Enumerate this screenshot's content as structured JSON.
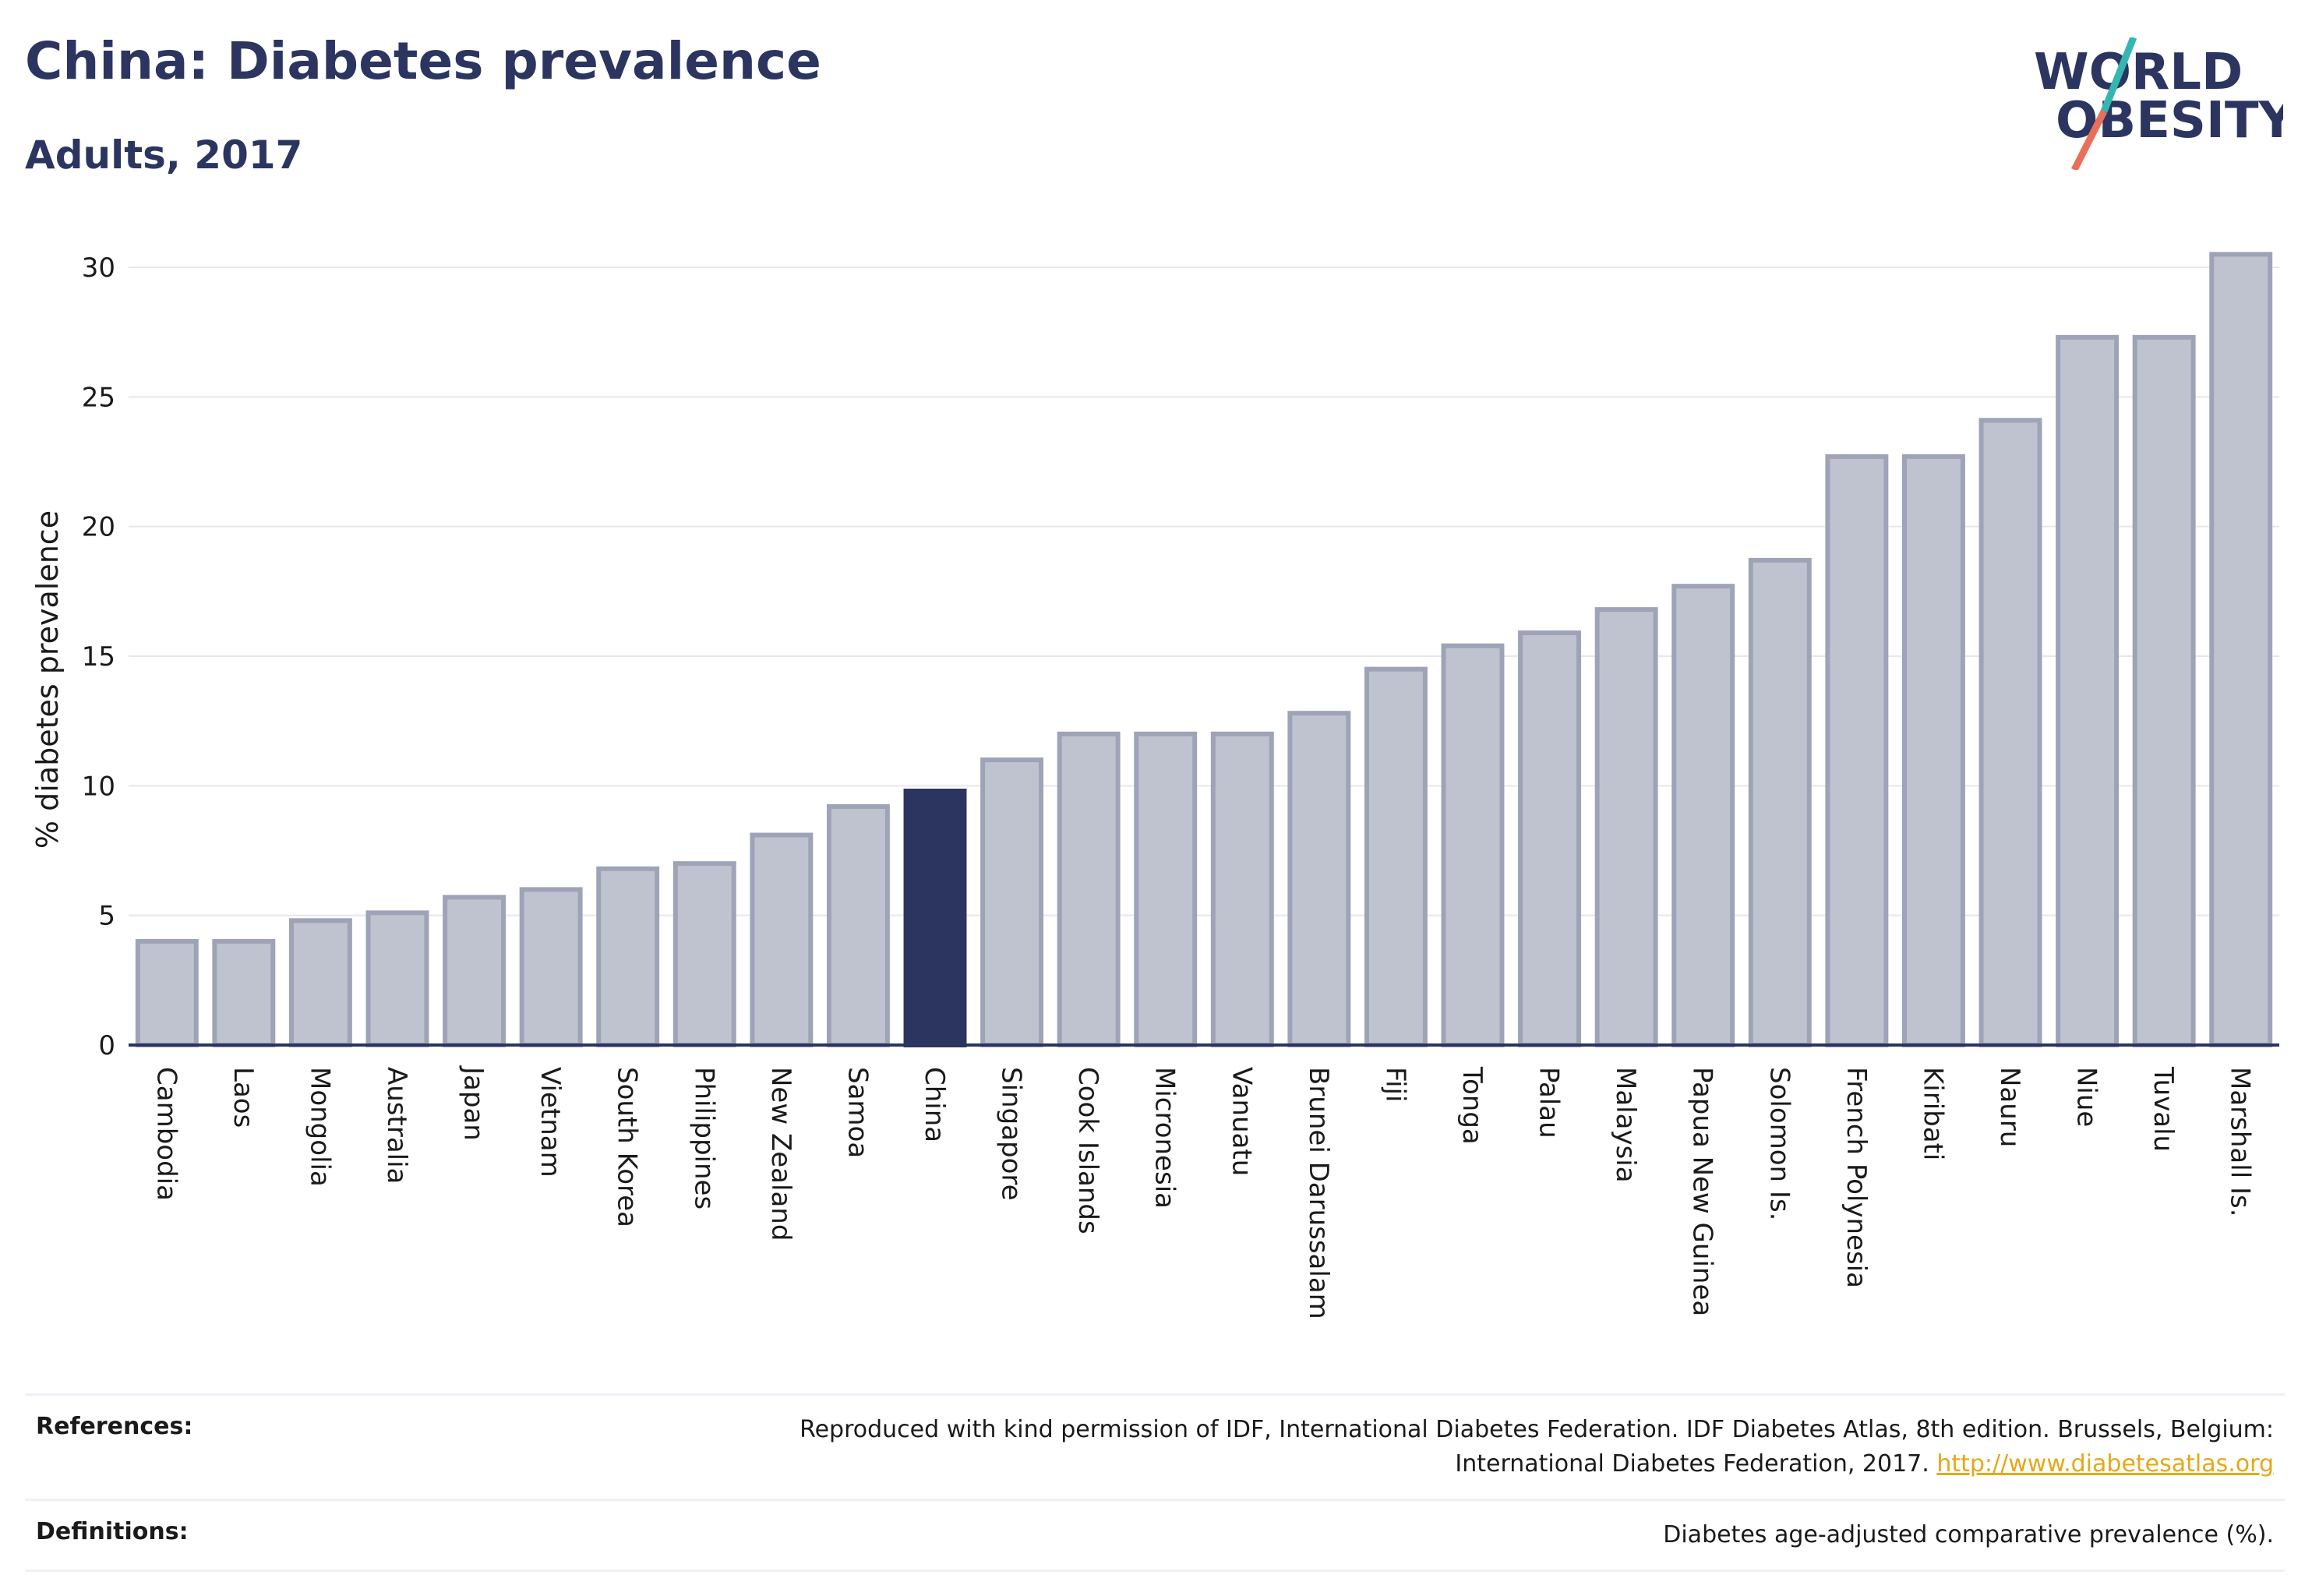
{
  "header": {
    "title": "China: Diabetes prevalence",
    "subtitle": "Adults, 2017"
  },
  "logo": {
    "line1": "WORLD",
    "line2": "OBESITY",
    "colors": {
      "text": "#2b3560",
      "slash_top": "#36b6b0",
      "slash_bottom": "#e8705a"
    }
  },
  "chart_data": {
    "type": "bar",
    "ylabel": "% diabetes prevalence",
    "xlabel": "",
    "ylim": [
      0,
      30
    ],
    "yticks": [
      0,
      5,
      10,
      15,
      20,
      25,
      30
    ],
    "grid": true,
    "highlight": "China",
    "colors": {
      "bar": "#bfc3d0",
      "bar_stroke": "#9ea3b8",
      "highlight": "#2b3560"
    },
    "categories": [
      "Cambodia",
      "Laos",
      "Mongolia",
      "Australia",
      "Japan",
      "Vietnam",
      "South Korea",
      "Philippines",
      "New Zealand",
      "Samoa",
      "China",
      "Singapore",
      "Cook Islands",
      "Micronesia",
      "Vanuatu",
      "Brunei Darussalam",
      "Fiji",
      "Tonga",
      "Palau",
      "Malaysia",
      "Papua New Guinea",
      "Solomon Is.",
      "French Polynesia",
      "Kiribati",
      "Nauru",
      "Niue",
      "Tuvalu",
      "Marshall Is."
    ],
    "values": [
      4.0,
      4.0,
      4.8,
      5.1,
      5.7,
      6.0,
      6.8,
      7.0,
      8.1,
      9.2,
      9.8,
      11.0,
      12.0,
      12.0,
      12.0,
      12.8,
      14.5,
      15.4,
      15.9,
      16.8,
      17.7,
      18.7,
      22.7,
      22.7,
      24.1,
      27.3,
      27.3,
      30.5
    ]
  },
  "footer": {
    "references_label": "References:",
    "references_text_1": "Reproduced with kind permission of IDF, International Diabetes Federation. IDF Diabetes Atlas, 8th edition. Brussels, Belgium:",
    "references_text_2": "International Diabetes Federation, 2017.",
    "references_link": "http://www.diabetesatlas.org",
    "definitions_label": "Definitions:",
    "definitions_text": "Diabetes age-adjusted comparative prevalence (%)."
  }
}
